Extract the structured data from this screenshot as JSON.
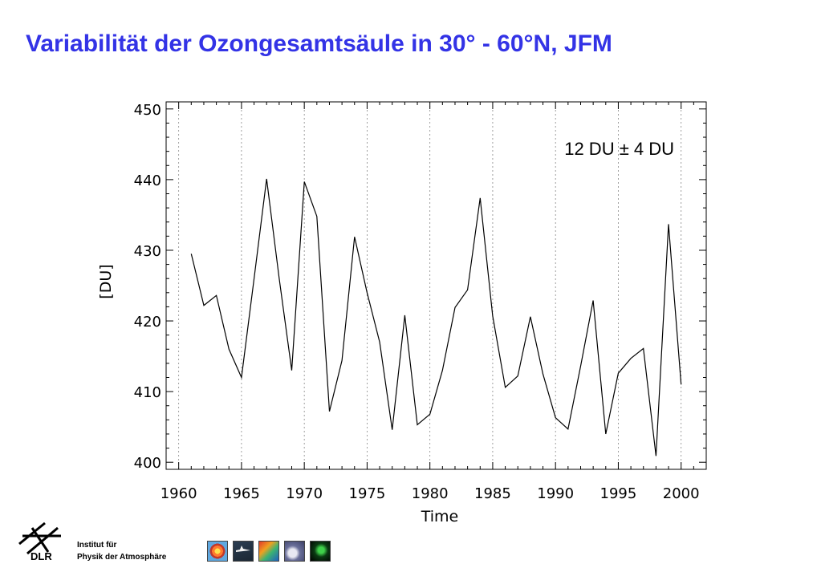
{
  "slide": {
    "title": "Variabilität der Ozongesamtsäule in 30° - 60°N, JFM"
  },
  "footer": {
    "institute_line1": "Institut für",
    "institute_line2": "Physik der Atmosphäre",
    "logo_text": "DLR",
    "logo_icon": "dlr-logo-icon",
    "thumbnail_icons": [
      "ozone-map-icon",
      "aircraft-icon",
      "satellite-map-icon",
      "cloud-photo-icon",
      "green-field-map-icon"
    ]
  },
  "chart_data": {
    "type": "line",
    "title": "",
    "annotation": "12 DU ± 4 DU",
    "xlabel": "Time",
    "ylabel": "[DU]",
    "xlim": [
      1959,
      2002
    ],
    "ylim": [
      399,
      451
    ],
    "x_ticks": [
      1960,
      1965,
      1970,
      1975,
      1980,
      1985,
      1990,
      1995,
      2000
    ],
    "y_ticks": [
      400,
      410,
      420,
      430,
      440,
      450
    ],
    "vertical_grid": true,
    "grid_style": "dotted",
    "line_color": "#000000",
    "series": [
      {
        "x": [
          1961,
          1962,
          1963,
          1964,
          1965,
          1966,
          1967,
          1968,
          1969,
          1970,
          1971,
          1972,
          1973,
          1974,
          1975,
          1976,
          1977,
          1978,
          1979,
          1980,
          1981,
          1982,
          1983,
          1984,
          1985,
          1986,
          1987,
          1988,
          1989,
          1990,
          1991,
          1992,
          1993,
          1994,
          1995,
          1996,
          1997,
          1998,
          1999,
          2000
        ],
        "values": [
          429.5,
          422.2,
          423.6,
          416.0,
          412.0,
          426.0,
          440.1,
          426.0,
          413.0,
          439.7,
          434.8,
          407.2,
          414.4,
          431.9,
          424.0,
          417.0,
          404.6,
          420.8,
          405.3,
          406.8,
          413.0,
          421.9,
          424.4,
          437.4,
          420.7,
          410.6,
          412.2,
          420.6,
          412.5,
          406.3,
          404.7,
          413.6,
          422.9,
          404.0,
          412.6,
          414.7,
          416.1,
          400.9,
          433.7,
          411.0
        ]
      }
    ]
  }
}
